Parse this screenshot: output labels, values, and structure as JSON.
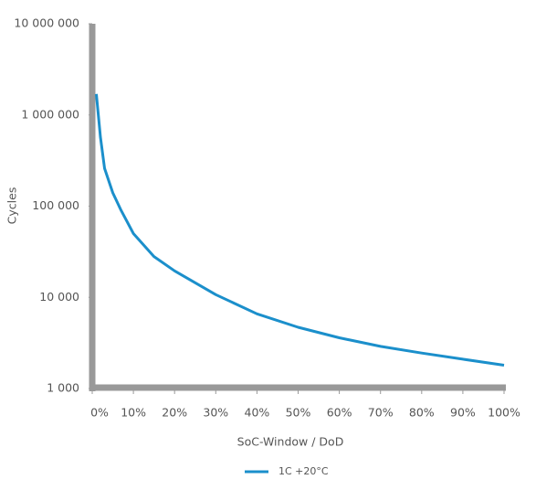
{
  "chart_data": {
    "type": "line",
    "x_label": "SoC-Window / DoD",
    "y_label": "Cycles",
    "log_y": true,
    "x": [
      1,
      2,
      3,
      5,
      7,
      10,
      15,
      20,
      30,
      40,
      50,
      60,
      70,
      80,
      90,
      100
    ],
    "series": [
      {
        "name": "1C +20°C",
        "color": "#1b8fcb",
        "values": [
          1700000,
          570000,
          260000,
          140000,
          90000,
          50000,
          28000,
          19500,
          10700,
          6600,
          4700,
          3600,
          2900,
          2450,
          2100,
          1800
        ]
      }
    ],
    "xlim": [
      0,
      100
    ],
    "xticks": [
      {
        "value": 0,
        "label": "0%"
      },
      {
        "value": 10,
        "label": "10%"
      },
      {
        "value": 20,
        "label": "20%"
      },
      {
        "value": 30,
        "label": "30%"
      },
      {
        "value": 40,
        "label": "40%"
      },
      {
        "value": 50,
        "label": "50%"
      },
      {
        "value": 60,
        "label": "60%"
      },
      {
        "value": 70,
        "label": "70%"
      },
      {
        "value": 80,
        "label": "80%"
      },
      {
        "value": 90,
        "label": "90%"
      },
      {
        "value": 100,
        "label": "100%"
      }
    ],
    "ylim": [
      1000,
      10000000
    ],
    "yticks": [
      {
        "value": 1000,
        "label": "1 000"
      },
      {
        "value": 10000,
        "label": "10 000"
      },
      {
        "value": 100000,
        "label": "100 000"
      },
      {
        "value": 1000000,
        "label": "1 000 000"
      },
      {
        "value": 10000000,
        "label": "10 000 000"
      }
    ],
    "axis_color": "#999999"
  }
}
